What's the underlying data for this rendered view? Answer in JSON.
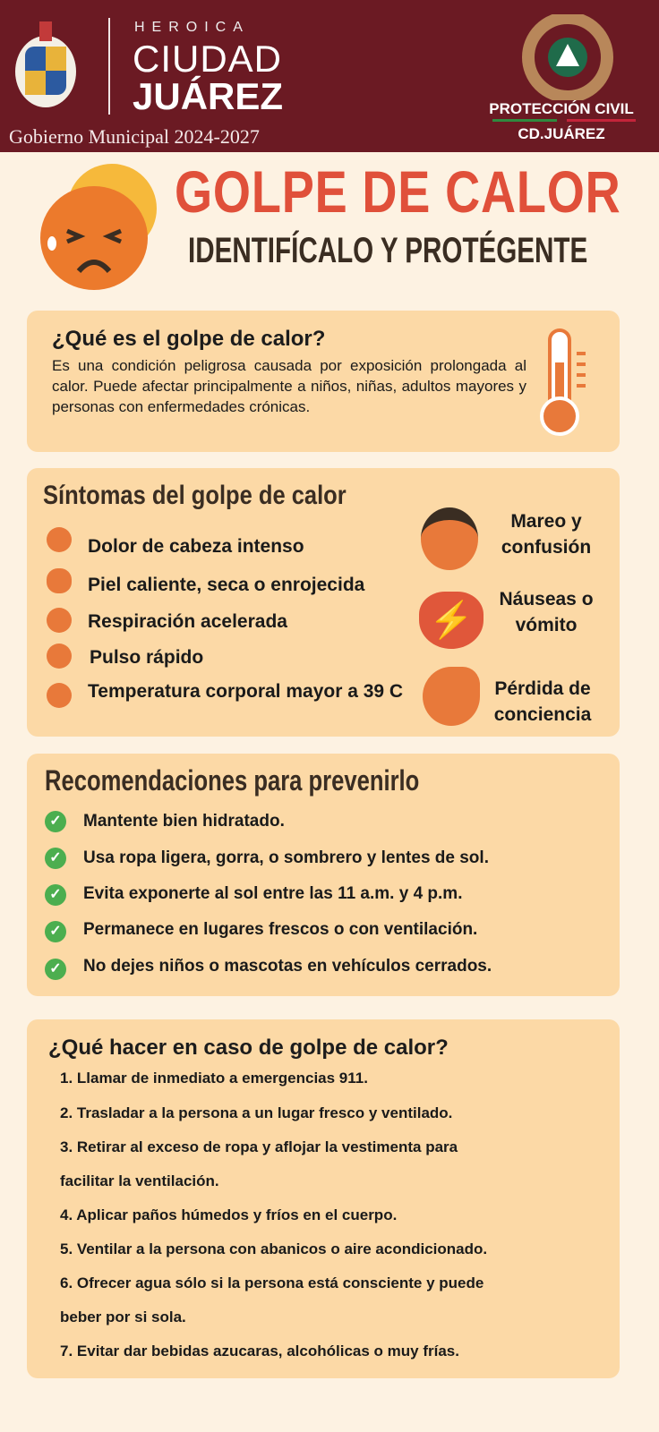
{
  "header": {
    "heroica": "HEROICA",
    "ciudad": "CIUDAD",
    "juarez": "JUÁREZ",
    "gobierno": "Gobierno Municipal 2024-2027",
    "pc_title": "PROTECCIÓN CIVIL",
    "pc_city": "CD.JUÁREZ"
  },
  "title": {
    "main": "GOLPE DE CALOR",
    "sub": "IDENTIFÍCALO Y PROTÉGENTE"
  },
  "what": {
    "heading": "¿Qué es el golpe de calor?",
    "text": "Es una condición peligrosa causada por exposición prolongada al calor. Puede afectar principalmente a niños, niñas, adultos mayores y personas con enfermedades crónicas."
  },
  "symptoms": {
    "heading": "Síntomas del golpe de calor",
    "items": [
      "Dolor de cabeza intenso",
      "Piel caliente, seca o enrojecida",
      "Respiración acelerada",
      "Pulso rápido",
      "Temperatura corporal mayor a 39 C"
    ],
    "right": [
      "Mareo y confusión",
      "Náuseas o vómito",
      "Pérdida de conciencia"
    ]
  },
  "prevent": {
    "heading": "Recomendaciones para prevenirlo",
    "items": [
      "Mantente bien hidratado.",
      "Usa ropa ligera, gorra, o sombrero y lentes de sol.",
      "Evita exponerte al sol entre las 11 a.m. y 4 p.m.",
      "Permanece en lugares frescos o con ventilación.",
      "No dejes niños o mascotas en vehículos cerrados."
    ]
  },
  "action": {
    "heading": "¿Qué hacer en caso de golpe de calor?",
    "lines": [
      "1. Llamar de inmediato a emergencias 911.",
      "2. Trasladar a la persona a un lugar fresco y ventilado.",
      "3. Retirar al exceso de ropa y aflojar la vestimenta para",
      "facilitar la ventilación.",
      "4. Aplicar paños húmedos y fríos en el cuerpo.",
      "5. Ventilar a la persona con abanicos o aire acondicionado.",
      "6. Ofrecer agua sólo si la persona está consciente y puede",
      "beber por si sola.",
      "7. Evitar dar bebidas azucaras, alcohólicas o muy frías."
    ]
  },
  "colors": {
    "header": "#6b1a23",
    "title": "#e0503a",
    "card": "#fcd9a6",
    "check": "#4cae4f"
  }
}
